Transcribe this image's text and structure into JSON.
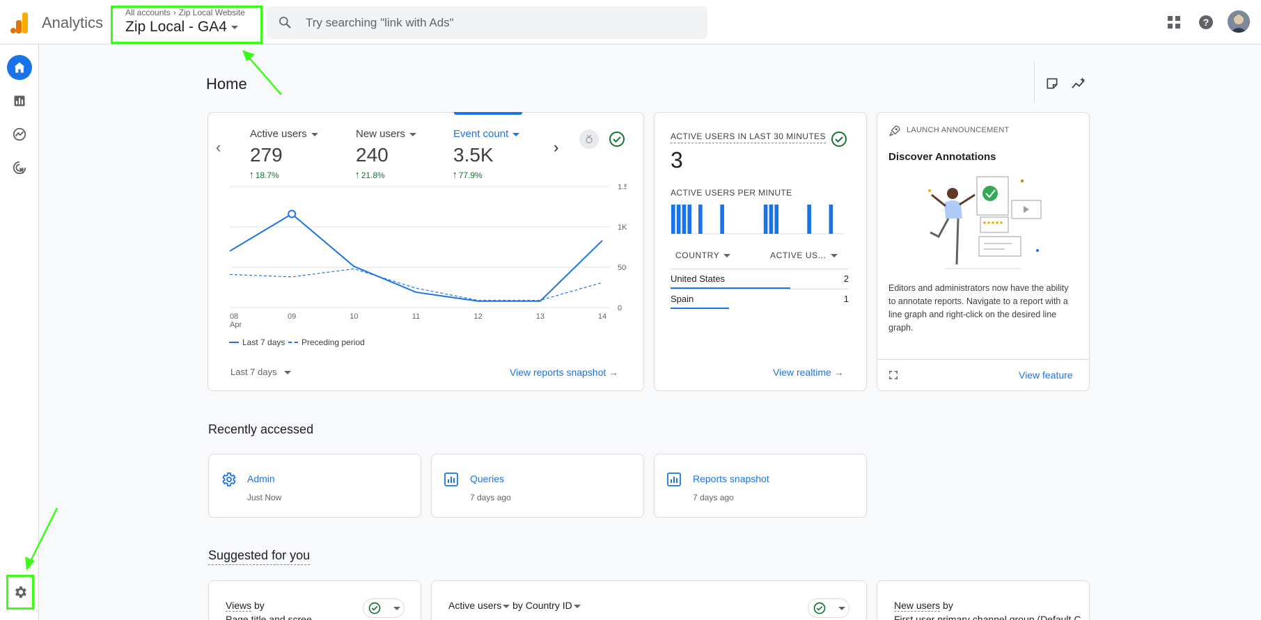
{
  "header": {
    "app_name": "Analytics",
    "breadcrumb_account": "All accounts",
    "breadcrumb_property": "Zip Local Website",
    "property_name": "Zip Local - GA4",
    "search_placeholder": "Try searching \"link with Ads\""
  },
  "page": {
    "title": "Home"
  },
  "metrics_card": {
    "metrics": [
      {
        "label": "Active users",
        "value": "279",
        "delta": "18.7%"
      },
      {
        "label": "New users",
        "value": "240",
        "delta": "21.8%"
      },
      {
        "label": "Event count",
        "value": "3.5K",
        "delta": "77.9%"
      }
    ],
    "selected_metric": "Event count",
    "date_range": "Last 7 days",
    "view_link": "View reports snapshot",
    "legend": {
      "current": "Last 7 days",
      "previous": "Preceding period"
    }
  },
  "chart_data": {
    "type": "line",
    "x": [
      "08 Apr",
      "09",
      "10",
      "11",
      "12",
      "13",
      "14"
    ],
    "x_tick_labels": [
      "08",
      "09",
      "10",
      "11",
      "12",
      "13",
      "14"
    ],
    "x_tick_sublabel": "Apr",
    "y_ticks": [
      "1.5K",
      "1K",
      "500",
      "0"
    ],
    "ylim": [
      0,
      1500
    ],
    "series": [
      {
        "name": "Last 7 days",
        "values": [
          700,
          1160,
          510,
          190,
          80,
          80,
          830
        ],
        "style": "solid",
        "color": "#1a73e8"
      },
      {
        "name": "Preceding period",
        "values": [
          410,
          380,
          480,
          240,
          90,
          90,
          310
        ],
        "style": "dashed",
        "color": "#1a73e8"
      }
    ],
    "highlight_index": 1,
    "grid": true
  },
  "realtime_card": {
    "title": "ACTIVE USERS IN LAST 30 MINUTES",
    "value": "3",
    "per_minute_label": "ACTIVE USERS PER MINUTE",
    "col_country": "COUNTRY",
    "col_users": "ACTIVE US...",
    "rows": [
      {
        "country": "United States",
        "value": "2",
        "fraction": 0.67
      },
      {
        "country": "Spain",
        "value": "1",
        "fraction": 0.33
      }
    ],
    "view_link": "View realtime",
    "per_minute_bars": [
      1,
      1,
      1,
      1,
      0,
      1,
      0,
      0,
      0,
      1,
      0,
      0,
      0,
      0,
      0,
      0,
      0,
      1,
      1,
      1,
      0,
      0,
      0,
      0,
      0,
      1,
      0,
      0,
      0,
      1,
      0,
      0
    ]
  },
  "launch_card": {
    "kicker": "LAUNCH ANNOUNCEMENT",
    "title": "Discover Annotations",
    "body": "Editors and administrators now have the ability to annotate reports. Navigate to a report with a line graph and right-click on the desired line graph.",
    "view_link": "View feature"
  },
  "recently_accessed": {
    "title": "Recently accessed",
    "items": [
      {
        "name": "Admin",
        "time": "Just Now",
        "icon": "gear-icon"
      },
      {
        "name": "Queries",
        "time": "7 days ago",
        "icon": "report-icon"
      },
      {
        "name": "Reports snapshot",
        "time": "7 days ago",
        "icon": "report-icon"
      }
    ]
  },
  "suggested": {
    "title": "Suggested for you",
    "cards": [
      {
        "line1_a": "Views",
        "line1_b": " by",
        "line2": "Page title and scree"
      },
      {
        "line1_a": "Active users",
        "line1_b": " by ",
        "line1_c": "Country ID"
      },
      {
        "line1_a": "New users",
        "line1_b": " by",
        "line2": "First user primary channel group (Default C"
      }
    ]
  },
  "colors": {
    "accent": "#1a73e8",
    "positive": "#137333",
    "highlight": "#39ff14"
  }
}
